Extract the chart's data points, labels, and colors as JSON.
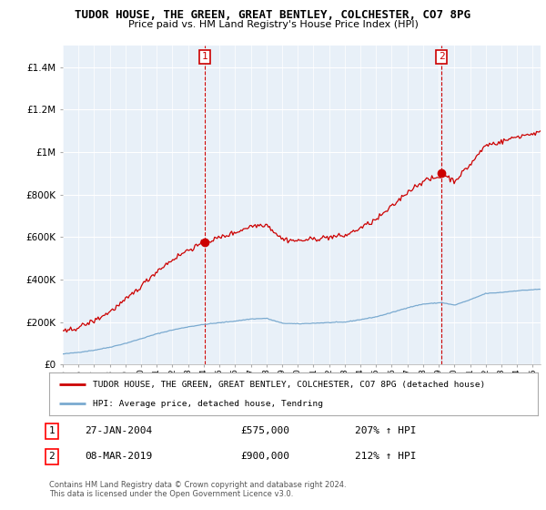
{
  "title": "TUDOR HOUSE, THE GREEN, GREAT BENTLEY, COLCHESTER, CO7 8PG",
  "subtitle": "Price paid vs. HM Land Registry's House Price Index (HPI)",
  "legend_label_red": "TUDOR HOUSE, THE GREEN, GREAT BENTLEY, COLCHESTER, CO7 8PG (detached house)",
  "legend_label_blue": "HPI: Average price, detached house, Tendring",
  "footer1": "Contains HM Land Registry data © Crown copyright and database right 2024.",
  "footer2": "This data is licensed under the Open Government Licence v3.0.",
  "sale1_label": "1",
  "sale1_date": "27-JAN-2004",
  "sale1_price": "£575,000",
  "sale1_hpi": "207% ↑ HPI",
  "sale2_label": "2",
  "sale2_date": "08-MAR-2019",
  "sale2_price": "£900,000",
  "sale2_hpi": "212% ↑ HPI",
  "ylim": [
    0,
    1500000
  ],
  "yticks": [
    0,
    200000,
    400000,
    600000,
    800000,
    1000000,
    1200000,
    1400000
  ],
  "ytick_labels": [
    "£0",
    "£200K",
    "£400K",
    "£600K",
    "£800K",
    "£1M",
    "£1.2M",
    "£1.4M"
  ],
  "background_color": "#ffffff",
  "plot_bg_color": "#e8f0f8",
  "red_color": "#cc0000",
  "blue_color": "#7aaad0",
  "grid_color": "#ffffff",
  "sale1_x": 2004.07,
  "sale1_y": 575000,
  "sale2_x": 2019.18,
  "sale2_y": 900000,
  "xmin": 1995,
  "xmax": 2025.5
}
